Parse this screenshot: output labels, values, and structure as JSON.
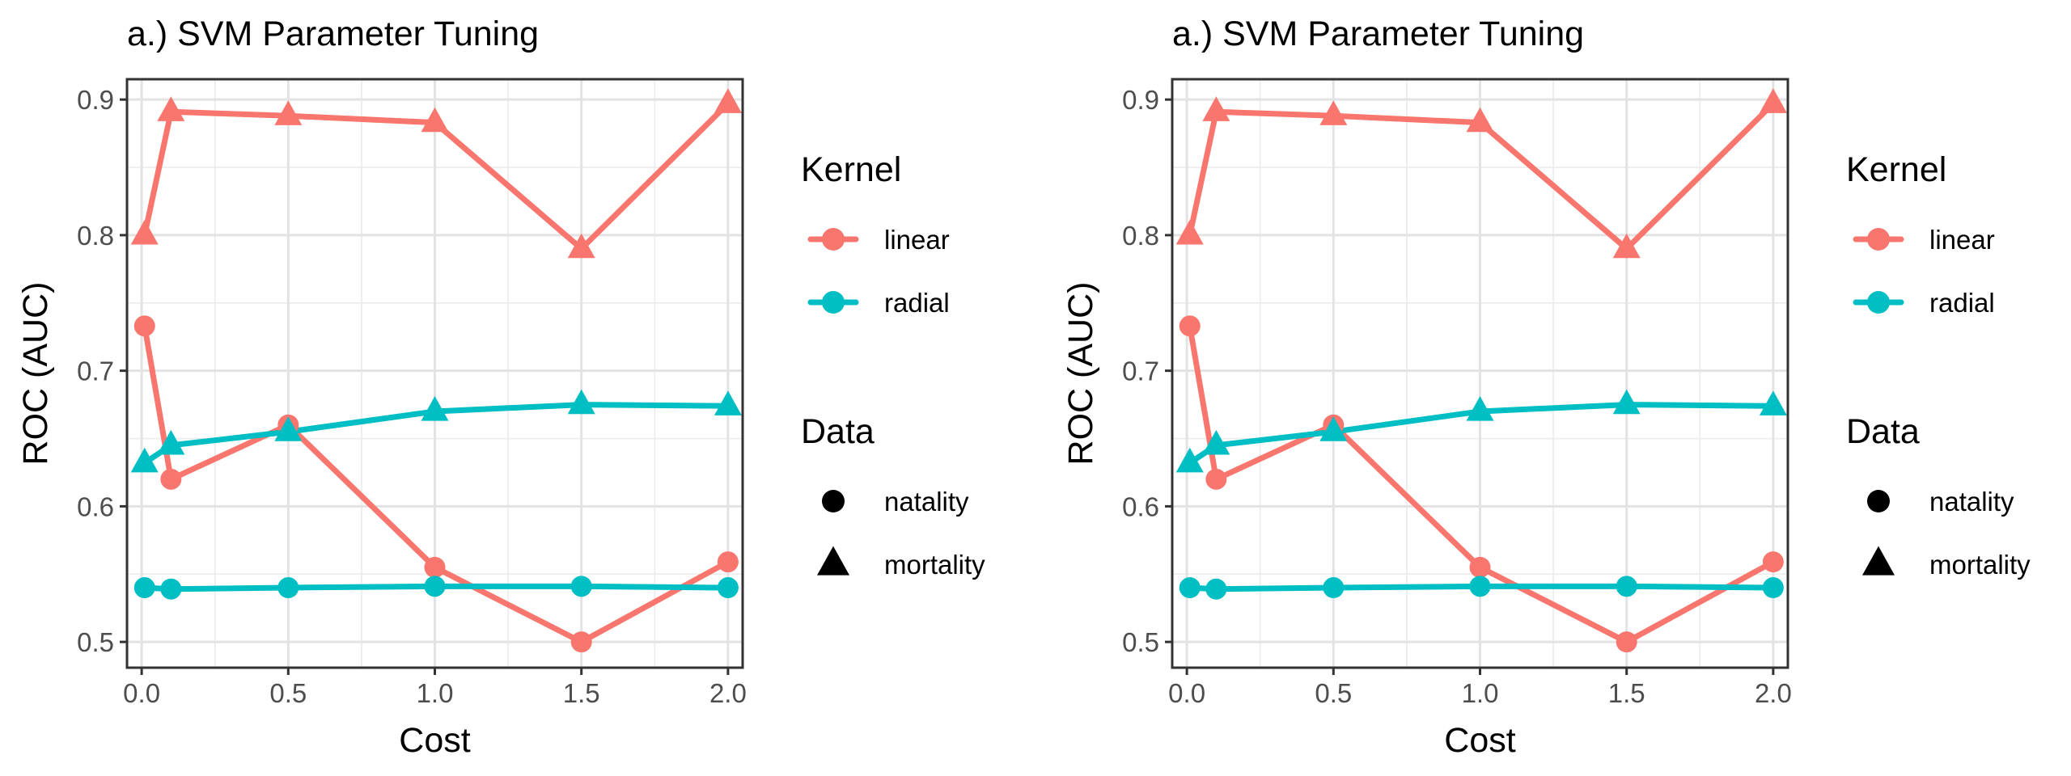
{
  "chart_data": [
    {
      "type": "line",
      "title": "a.) SVM Parameter Tuning",
      "xlabel": "Cost",
      "ylabel": "ROC (AUC)",
      "xlim": [
        -0.05,
        2.05
      ],
      "ylim": [
        0.481,
        0.915
      ],
      "xticks": [
        "0.0",
        "0.5",
        "1.0",
        "1.5",
        "2.0"
      ],
      "xtick_values": [
        0,
        0.5,
        1,
        1.5,
        2
      ],
      "yticks": [
        "0.5",
        "0.6",
        "0.7",
        "0.8",
        "0.9"
      ],
      "ytick_values": [
        0.5,
        0.6,
        0.7,
        0.8,
        0.9
      ],
      "grid": true,
      "legend_placement": "right",
      "legends": [
        {
          "title": "Kernel",
          "entries": [
            {
              "label": "linear",
              "color": "#F8766D"
            },
            {
              "label": "radial",
              "color": "#00BFC4"
            }
          ]
        },
        {
          "title": "Data",
          "entries": [
            {
              "label": "natality",
              "shape": "circle"
            },
            {
              "label": "mortality",
              "shape": "triangle"
            }
          ]
        }
      ],
      "series": [
        {
          "kernel": "linear",
          "data": "mortality",
          "color": "#F8766D",
          "shape": "triangle",
          "x": [
            0.01,
            0.1,
            0.5,
            1.0,
            1.5,
            2.0
          ],
          "y": [
            0.8,
            0.891,
            0.888,
            0.883,
            0.79,
            0.897
          ]
        },
        {
          "kernel": "linear",
          "data": "natality",
          "color": "#F8766D",
          "shape": "circle",
          "x": [
            0.01,
            0.1,
            0.5,
            1.0,
            1.5,
            2.0
          ],
          "y": [
            0.733,
            0.62,
            0.66,
            0.555,
            0.5,
            0.559
          ]
        },
        {
          "kernel": "radial",
          "data": "mortality",
          "color": "#00BFC4",
          "shape": "triangle",
          "x": [
            0.01,
            0.1,
            0.5,
            1.0,
            1.5,
            2.0
          ],
          "y": [
            0.632,
            0.645,
            0.655,
            0.67,
            0.675,
            0.674
          ]
        },
        {
          "kernel": "radial",
          "data": "natality",
          "color": "#00BFC4",
          "shape": "circle",
          "x": [
            0.01,
            0.1,
            0.5,
            1.0,
            1.5,
            2.0
          ],
          "y": [
            0.54,
            0.539,
            0.54,
            0.541,
            0.541,
            0.54
          ]
        }
      ]
    },
    {
      "type": "line",
      "title": "a.) SVM Parameter Tuning",
      "xlabel": "Cost",
      "ylabel": "ROC (AUC)",
      "xlim": [
        -0.05,
        2.05
      ],
      "ylim": [
        0.481,
        0.915
      ],
      "xticks": [
        "0.0",
        "0.5",
        "1.0",
        "1.5",
        "2.0"
      ],
      "xtick_values": [
        0,
        0.5,
        1,
        1.5,
        2
      ],
      "yticks": [
        "0.5",
        "0.6",
        "0.7",
        "0.8",
        "0.9"
      ],
      "ytick_values": [
        0.5,
        0.6,
        0.7,
        0.8,
        0.9
      ],
      "grid": true,
      "legend_placement": "right",
      "legends": [
        {
          "title": "Kernel",
          "entries": [
            {
              "label": "linear",
              "color": "#F8766D"
            },
            {
              "label": "radial",
              "color": "#00BFC4"
            }
          ]
        },
        {
          "title": "Data",
          "entries": [
            {
              "label": "natality",
              "shape": "circle"
            },
            {
              "label": "mortality",
              "shape": "triangle"
            }
          ]
        }
      ],
      "series": [
        {
          "kernel": "linear",
          "data": "mortality",
          "color": "#F8766D",
          "shape": "triangle",
          "x": [
            0.01,
            0.1,
            0.5,
            1.0,
            1.5,
            2.0
          ],
          "y": [
            0.8,
            0.891,
            0.888,
            0.883,
            0.79,
            0.897
          ]
        },
        {
          "kernel": "linear",
          "data": "natality",
          "color": "#F8766D",
          "shape": "circle",
          "x": [
            0.01,
            0.1,
            0.5,
            1.0,
            1.5,
            2.0
          ],
          "y": [
            0.733,
            0.62,
            0.66,
            0.555,
            0.5,
            0.559
          ]
        },
        {
          "kernel": "radial",
          "data": "mortality",
          "color": "#00BFC4",
          "shape": "triangle",
          "x": [
            0.01,
            0.1,
            0.5,
            1.0,
            1.5,
            2.0
          ],
          "y": [
            0.632,
            0.645,
            0.655,
            0.67,
            0.675,
            0.674
          ]
        },
        {
          "kernel": "radial",
          "data": "natality",
          "color": "#00BFC4",
          "shape": "circle",
          "x": [
            0.01,
            0.1,
            0.5,
            1.0,
            1.5,
            2.0
          ],
          "y": [
            0.54,
            0.539,
            0.54,
            0.541,
            0.541,
            0.54
          ]
        }
      ]
    }
  ]
}
